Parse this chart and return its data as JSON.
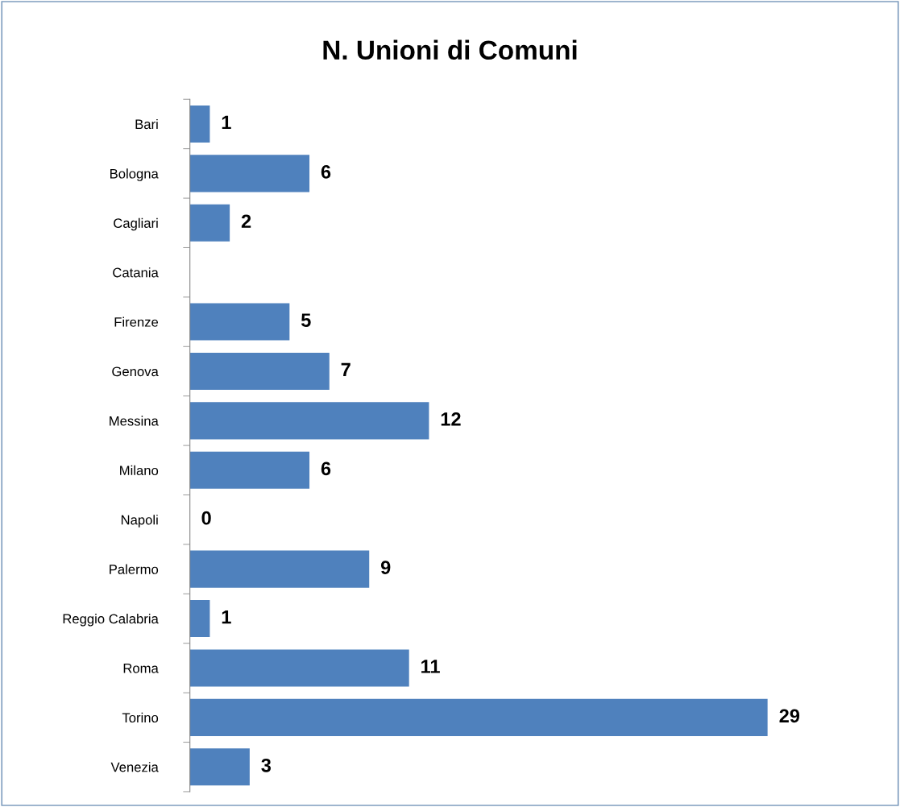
{
  "chart_data": {
    "type": "bar",
    "orientation": "horizontal",
    "title": "N. Unioni di Comuni",
    "categories": [
      "Bari",
      "Bologna",
      "Cagliari",
      "Catania",
      "Firenze",
      "Genova",
      "Messina",
      "Milano",
      "Napoli",
      "Palermo",
      "Reggio Calabria",
      "Roma",
      "Torino",
      "Venezia"
    ],
    "values": [
      1,
      6,
      2,
      null,
      5,
      7,
      12,
      6,
      0,
      9,
      1,
      11,
      29,
      3
    ],
    "color": "#4f81bd",
    "data_labels": true,
    "grid": false,
    "legend": false
  }
}
